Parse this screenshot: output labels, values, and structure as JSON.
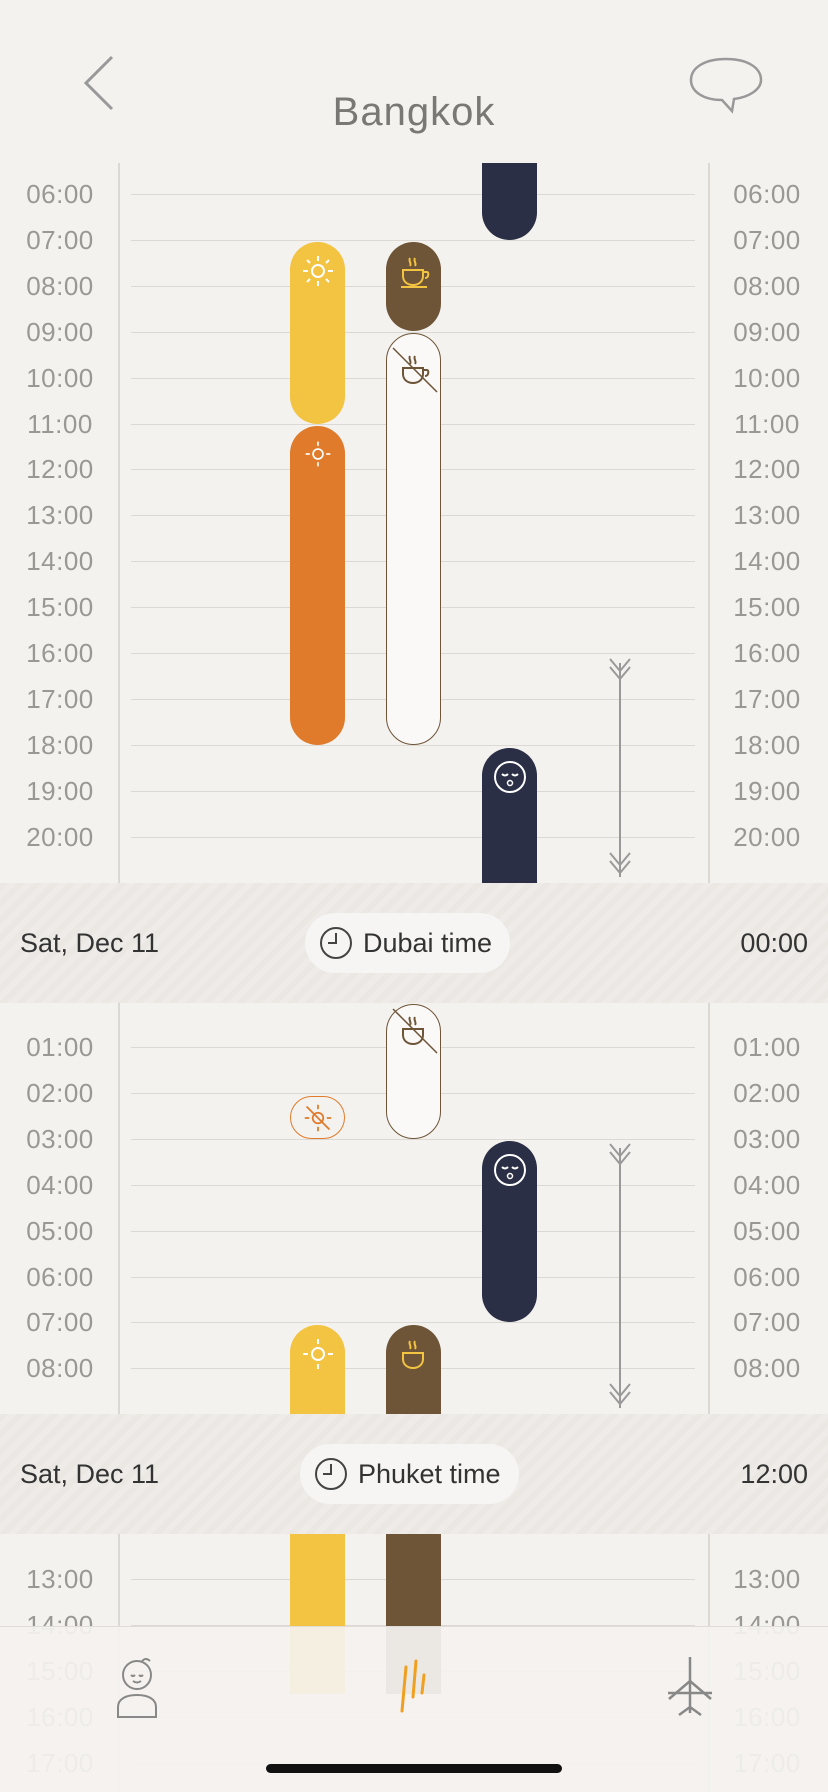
{
  "header": {
    "title": "Bangkok"
  },
  "sections": [
    {
      "hours": [
        "06:00",
        "07:00",
        "08:00",
        "09:00",
        "10:00",
        "11:00",
        "12:00",
        "13:00",
        "14:00",
        "15:00",
        "16:00",
        "17:00",
        "18:00",
        "19:00",
        "20:00"
      ]
    },
    {
      "hours": [
        "01:00",
        "02:00",
        "03:00",
        "04:00",
        "05:00",
        "06:00",
        "07:00",
        "08:00"
      ]
    },
    {
      "hours": [
        "13:00",
        "14:00",
        "15:00",
        "16:00",
        "17:00"
      ]
    }
  ],
  "dividers": [
    {
      "date": "Sat, Dec 11",
      "zone": "Dubai time",
      "time": "00:00"
    },
    {
      "date": "Sat, Dec 11",
      "zone": "Phuket time",
      "time": "12:00"
    }
  ]
}
